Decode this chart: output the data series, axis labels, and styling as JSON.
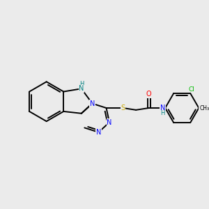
{
  "background_color": "#ebebeb",
  "N_color": "#0000ff",
  "NH_color": "#008080",
  "S_color": "#ccaa00",
  "O_color": "#ff0000",
  "Cl_color": "#00bb00",
  "C_color": "#000000",
  "lw": 1.4,
  "figsize": [
    3.0,
    3.0
  ],
  "dpi": 100,
  "xlim": [
    0,
    10
  ],
  "ylim": [
    0,
    10
  ]
}
